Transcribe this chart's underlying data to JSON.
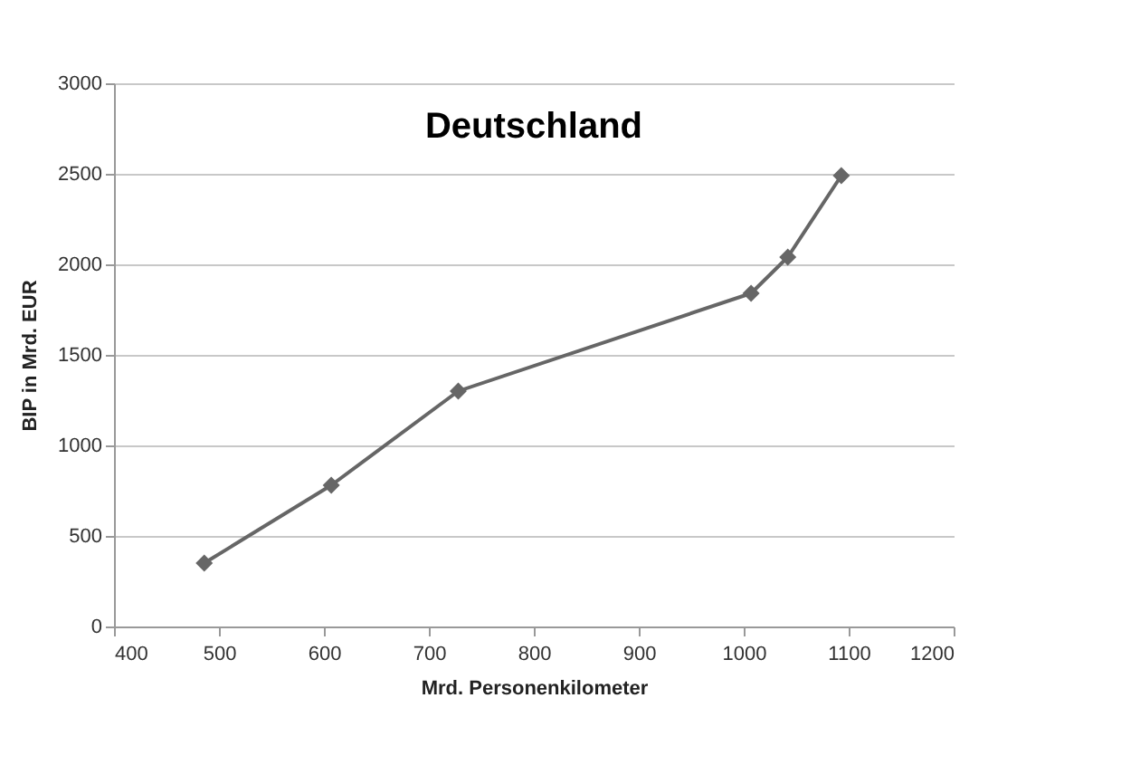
{
  "chart_data": {
    "type": "line",
    "title": "Deutschland",
    "xlabel": "Mrd. Personenkilometer",
    "ylabel": "BIP in Mrd. EUR",
    "x": [
      486,
      607,
      728,
      1007,
      1042,
      1093
    ],
    "series": [
      {
        "color": "#666666",
        "values": [
          350,
          780,
          1300,
          1840,
          2040,
          2490
        ]
      }
    ],
    "xlim": [
      400,
      1200
    ],
    "xticks": [
      400,
      500,
      600,
      700,
      800,
      900,
      1000,
      1100,
      1200
    ],
    "ylim": [
      0,
      3000
    ],
    "yticks": [
      0,
      500,
      1000,
      1500,
      2000,
      2500,
      3000
    ],
    "grid": "y",
    "marker": "diamond",
    "line_style": "solid"
  }
}
